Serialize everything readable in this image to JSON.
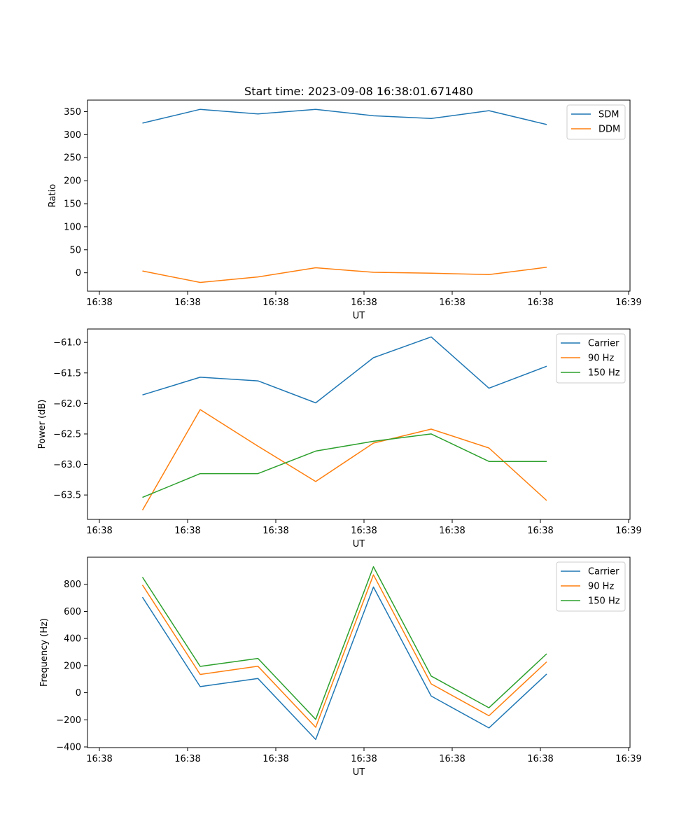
{
  "title": "Start time: 2023-09-08 16:38:01.671480",
  "chart_data": [
    {
      "type": "line",
      "xlabel": "UT",
      "ylabel": "Ratio",
      "x_tick_labels": [
        "16:38",
        "16:38",
        "16:38",
        "16:38",
        "16:38",
        "16:38",
        "16:38",
        "16:39"
      ],
      "y_ticks": [
        0,
        50,
        100,
        150,
        200,
        250,
        300,
        350
      ],
      "y_tick_labels": [
        "0",
        "50",
        "100",
        "150",
        "200",
        "250",
        "300",
        "350"
      ],
      "ylim": [
        -40,
        375
      ],
      "legend_position": "top-right",
      "series": [
        {
          "name": "SDM",
          "color": "#1f77b4",
          "values": [
            325,
            355,
            345,
            355,
            341,
            335,
            352,
            322
          ]
        },
        {
          "name": "DDM",
          "color": "#ff7f0e",
          "values": [
            4,
            -21,
            -9,
            11,
            1,
            -1,
            -4,
            12
          ]
        }
      ]
    },
    {
      "type": "line",
      "xlabel": "UT",
      "ylabel": "Power (dB)",
      "x_tick_labels": [
        "16:38",
        "16:38",
        "16:38",
        "16:38",
        "16:38",
        "16:38",
        "16:38",
        "16:39"
      ],
      "y_ticks": [
        -63.5,
        -63.0,
        -62.5,
        -62.0,
        -61.5,
        -61.0
      ],
      "y_tick_labels": [
        "−63.5",
        "−63.0",
        "−62.5",
        "−62.0",
        "−61.5",
        "−61.0"
      ],
      "ylim": [
        -63.9,
        -60.78
      ],
      "legend_position": "top-right",
      "series": [
        {
          "name": "Carrier",
          "color": "#1f77b4",
          "values": [
            -61.86,
            -61.57,
            -61.63,
            -61.99,
            -61.25,
            -60.91,
            -61.75,
            -61.39
          ]
        },
        {
          "name": "90 Hz",
          "color": "#ff7f0e",
          "values": [
            -63.75,
            -62.1,
            -62.7,
            -63.28,
            -62.65,
            -62.42,
            -62.73,
            -63.59
          ]
        },
        {
          "name": "150 Hz",
          "color": "#2ca02c",
          "values": [
            -63.54,
            -63.15,
            -63.15,
            -62.78,
            -62.62,
            -62.5,
            -62.95,
            -62.95
          ]
        }
      ]
    },
    {
      "type": "line",
      "xlabel": "UT",
      "ylabel": "Frequency (Hz)",
      "x_tick_labels": [
        "16:38",
        "16:38",
        "16:38",
        "16:38",
        "16:38",
        "16:38",
        "16:38",
        "16:39"
      ],
      "y_ticks": [
        -400,
        -200,
        0,
        200,
        400,
        600,
        800
      ],
      "y_tick_labels": [
        "−400",
        "−200",
        "0",
        "200",
        "400",
        "600",
        "800"
      ],
      "ylim": [
        -405,
        1000
      ],
      "legend_position": "top-right",
      "series": [
        {
          "name": "Carrier",
          "color": "#1f77b4",
          "values": [
            705,
            45,
            105,
            -345,
            780,
            -25,
            -260,
            138
          ]
        },
        {
          "name": "90 Hz",
          "color": "#ff7f0e",
          "values": [
            795,
            135,
            195,
            -255,
            870,
            65,
            -170,
            228
          ]
        },
        {
          "name": "150 Hz",
          "color": "#2ca02c",
          "values": [
            853,
            194,
            253,
            -197,
            930,
            123,
            -111,
            287
          ]
        }
      ]
    }
  ]
}
